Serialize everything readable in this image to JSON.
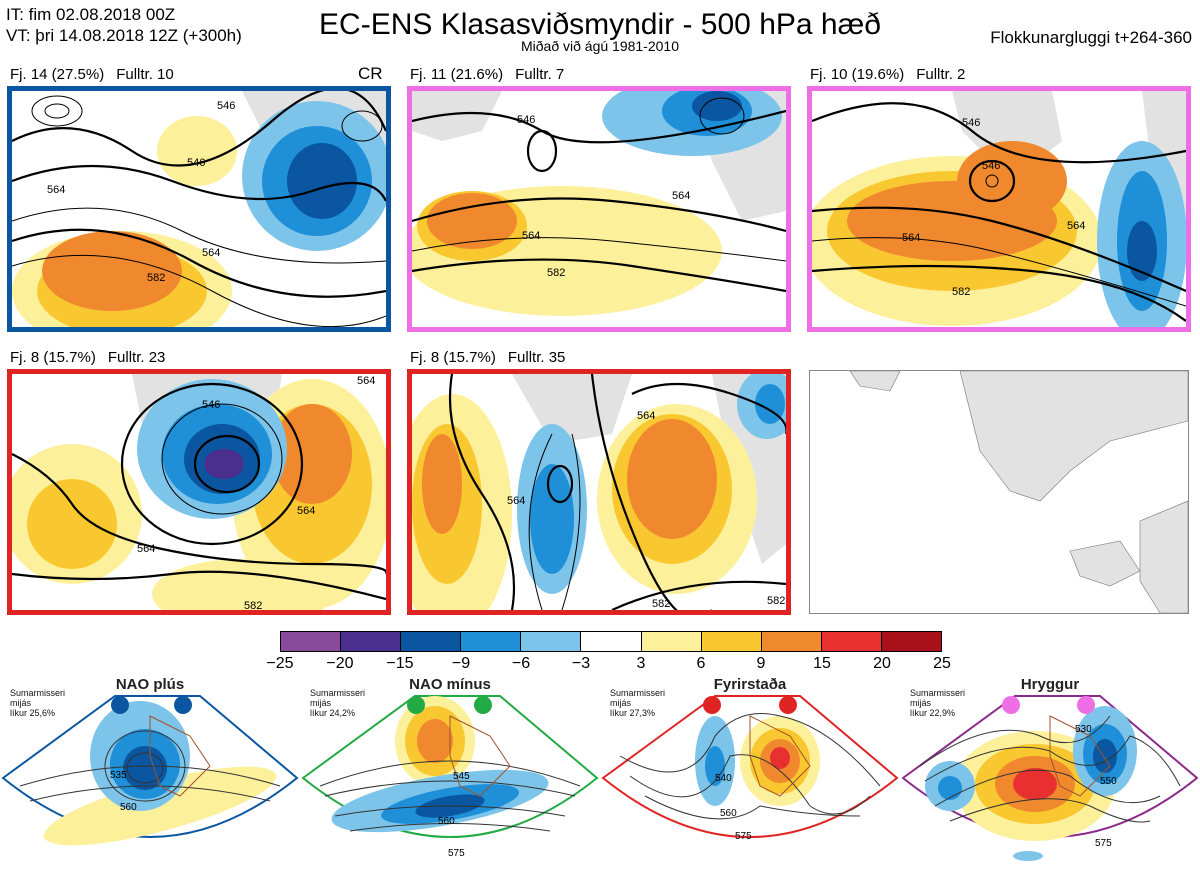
{
  "header": {
    "issue_time": "IT: fim 02.08.2018 00Z",
    "valid_time": "VT: þri 14.08.2018 12Z  (+300h)",
    "title": "EC-ENS Klasasviðsmyndir - 500 hPa hæð",
    "subtitle": "Miðað við ágú 1981-2010",
    "window": "Flokkunargluggi t+264-360"
  },
  "panels": [
    {
      "label_cluster": "Fj. 14 (27.5%)",
      "label_rep": "Fulltr. 10",
      "tag": "CR",
      "frame_color": "#0a56a0",
      "contour_labels": [
        "546",
        "546",
        "564",
        "582",
        "564"
      ]
    },
    {
      "label_cluster": "Fj. 11 (21.6%)",
      "label_rep": "Fulltr. 7",
      "tag": "",
      "frame_color": "#ee6ee6",
      "contour_labels": [
        "546",
        "564",
        "564",
        "582"
      ]
    },
    {
      "label_cluster": "Fj. 10 (19.6%)",
      "label_rep": "Fulltr. 2",
      "tag": "",
      "frame_color": "#ee6ee6",
      "contour_labels": [
        "546",
        "546",
        "564",
        "564",
        "582"
      ]
    },
    {
      "label_cluster": "Fj. 8 (15.7%)",
      "label_rep": "Fulltr. 23",
      "tag": "",
      "frame_color": "#e02424",
      "contour_labels": [
        "546",
        "564",
        "564",
        "564",
        "582"
      ]
    },
    {
      "label_cluster": "Fj. 8 (15.7%)",
      "label_rep": "Fulltr. 35",
      "tag": "",
      "frame_color": "#e02424",
      "contour_labels": [
        "564",
        "564",
        "582",
        "582"
      ]
    }
  ],
  "colorbar": {
    "colors": [
      "#8a4a9c",
      "#4a2f8f",
      "#0a56a0",
      "#1f90d8",
      "#7cc4ea",
      "#ffffff",
      "#fdf09a",
      "#f9c830",
      "#f0882e",
      "#e83030",
      "#a8111a"
    ],
    "labels": [
      "−25",
      "−20",
      "−15",
      "−9",
      "−6",
      "−3",
      "3",
      "6",
      "9",
      "15",
      "20",
      "25"
    ]
  },
  "regimes": [
    {
      "name": "NAO plús",
      "note_line1": "Sumarmisseri",
      "note_line2": "mijás",
      "note_line3": "líkur 25,6%",
      "dot_color": "#0a56a0",
      "frame_color": "#0a56a0",
      "contours": [
        "535",
        "560"
      ]
    },
    {
      "name": "NAO mínus",
      "note_line1": "Sumarmisseri",
      "note_line2": "mijás",
      "note_line3": "líkur 24,2%",
      "dot_color": "#22aa44",
      "frame_color": "#22aa44",
      "contours": [
        "545",
        "560",
        "575"
      ]
    },
    {
      "name": "Fyrirstaða",
      "note_line1": "Sumarmisseri",
      "note_line2": "mijás",
      "note_line3": "líkur 27,3%",
      "dot_color": "#e02424",
      "frame_color": "#e02424",
      "contours": [
        "540",
        "560",
        "575"
      ]
    },
    {
      "name": "Hryggur",
      "note_line1": "Sumarmisseri",
      "note_line2": "mijás",
      "note_line3": "líkur 22,9%",
      "dot_color": "#ee6ee6",
      "frame_color": "#8b2a8b",
      "contours": [
        "530",
        "550",
        "575"
      ]
    }
  ]
}
